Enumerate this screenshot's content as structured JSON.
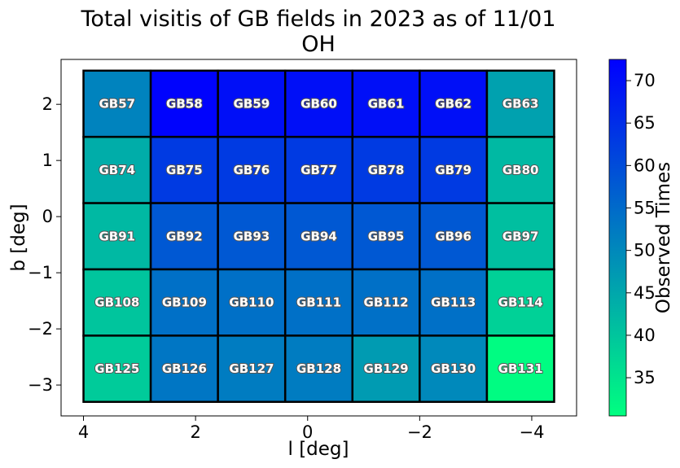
{
  "chart_data": {
    "type": "heatmap",
    "title_line1": "Total visitis of GB fields in 2023 as of 11/01",
    "title_line2": "OH",
    "xlabel": "l [deg]",
    "ylabel": "b [deg]",
    "colorbar_label": "Observed Times",
    "xlim": [
      4.4,
      -4.8
    ],
    "ylim": [
      -3.55,
      2.8
    ],
    "x_ticks": [
      {
        "v": 4,
        "label": "4"
      },
      {
        "v": 2,
        "label": "2"
      },
      {
        "v": 0,
        "label": "0"
      },
      {
        "v": -2,
        "label": "−2"
      },
      {
        "v": -4,
        "label": "−4"
      }
    ],
    "y_ticks": [
      {
        "v": 2,
        "label": "2"
      },
      {
        "v": 1,
        "label": "1"
      },
      {
        "v": 0,
        "label": "0"
      },
      {
        "v": -1,
        "label": "−1"
      },
      {
        "v": -2,
        "label": "−2"
      },
      {
        "v": -3,
        "label": "−3"
      }
    ],
    "colorbar_range": [
      30.5,
      72.5
    ],
    "colorbar_ticks": [
      {
        "v": 35,
        "label": "35"
      },
      {
        "v": 40,
        "label": "40"
      },
      {
        "v": 45,
        "label": "45"
      },
      {
        "v": 50,
        "label": "50"
      },
      {
        "v": 55,
        "label": "55"
      },
      {
        "v": 60,
        "label": "60"
      },
      {
        "v": 65,
        "label": "65"
      },
      {
        "v": 70,
        "label": "70"
      }
    ],
    "colormap": {
      "low": "#00ff80",
      "high": "#0000ff"
    },
    "grid": false,
    "l_edges": [
      4.0,
      2.8,
      1.6,
      0.4,
      -0.8,
      -2.0,
      -3.2,
      -4.4
    ],
    "b_edges": [
      2.6,
      1.42,
      0.24,
      -0.94,
      -2.12,
      -3.3
    ],
    "rows": [
      {
        "fields": [
          "GB57",
          "GB58",
          "GB59",
          "GB60",
          "GB61",
          "GB62",
          "GB63"
        ],
        "values": [
          51,
          72,
          70,
          70,
          70,
          70,
          46
        ]
      },
      {
        "fields": [
          "GB74",
          "GB75",
          "GB76",
          "GB77",
          "GB78",
          "GB79",
          "GB80"
        ],
        "values": [
          44,
          63,
          63,
          63,
          63,
          63,
          42
        ]
      },
      {
        "fields": [
          "GB91",
          "GB92",
          "GB93",
          "GB94",
          "GB95",
          "GB96",
          "GB97"
        ],
        "values": [
          42,
          58,
          58,
          58,
          58,
          58,
          41
        ]
      },
      {
        "fields": [
          "GB108",
          "GB109",
          "GB110",
          "GB111",
          "GB112",
          "GB113",
          "GB114"
        ],
        "values": [
          40,
          54,
          54,
          54,
          54,
          54,
          38
        ]
      },
      {
        "fields": [
          "GB125",
          "GB126",
          "GB127",
          "GB128",
          "GB129",
          "GB130",
          "GB131"
        ],
        "values": [
          39,
          53,
          52,
          52,
          47,
          50,
          31
        ]
      }
    ]
  }
}
